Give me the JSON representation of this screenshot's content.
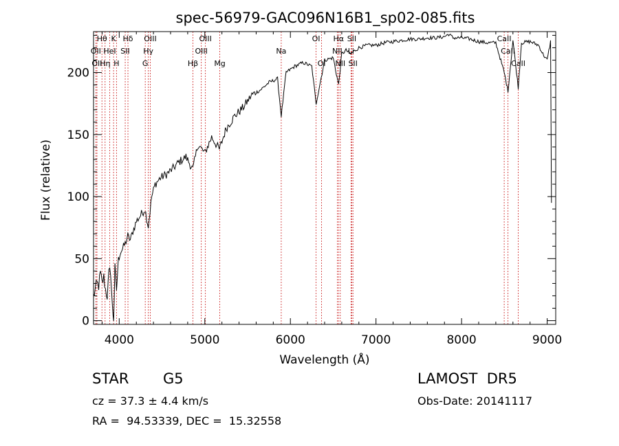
{
  "chart_data": {
    "type": "line",
    "title": "spec-56979-GAC096N16B1_sp02-085.fits",
    "xlabel": "Wavelength (Å)",
    "ylabel": "Flux (relative)",
    "xlim": [
      3700,
      9100
    ],
    "ylim": [
      -3,
      233
    ],
    "xticks": [
      4000,
      5000,
      6000,
      7000,
      8000,
      9000
    ],
    "yticks": [
      0,
      50,
      100,
      150,
      200
    ],
    "grid": false,
    "series": [
      {
        "x": [
          3700,
          3720,
          3740,
          3760,
          3780,
          3800,
          3820,
          3840,
          3860,
          3880,
          3900,
          3920,
          3935,
          3950,
          3968,
          3990,
          4010,
          4040,
          4070,
          4100,
          4130,
          4160,
          4200,
          4250,
          4300,
          4340,
          4380,
          4420,
          4480,
          4550,
          4620,
          4700,
          4780,
          4861,
          4920,
          5000,
          5080,
          5170,
          5250,
          5350,
          5450,
          5550,
          5650,
          5750,
          5850,
          5893,
          5950,
          6050,
          6150,
          6250,
          6300,
          6400,
          6500,
          6563,
          6600,
          6650,
          6700,
          6800,
          6900,
          7000,
          7100,
          7200,
          7300,
          7400,
          7500,
          7600,
          7700,
          7800,
          7850,
          7900,
          8000,
          8100,
          8200,
          8300,
          8400,
          8498,
          8542,
          8600,
          8662,
          8700,
          8800,
          8900,
          8950,
          9000,
          9040,
          9050
        ],
        "y": [
          20,
          25,
          30,
          28,
          38,
          30,
          35,
          25,
          20,
          38,
          40,
          10,
          2,
          42,
          25,
          48,
          55,
          58,
          62,
          68,
          65,
          72,
          80,
          85,
          90,
          76,
          100,
          110,
          115,
          118,
          122,
          128,
          132,
          122,
          142,
          135,
          148,
          138,
          155,
          165,
          172,
          182,
          186,
          192,
          195,
          165,
          200,
          205,
          208,
          205,
          175,
          210,
          212,
          190,
          215,
          218,
          215,
          220,
          222,
          222,
          224,
          225,
          226,
          227,
          227,
          228,
          228,
          229,
          231,
          228,
          228,
          227,
          225,
          224,
          224,
          200,
          185,
          226,
          188,
          224,
          225,
          222,
          215,
          210,
          225,
          95
        ]
      }
    ],
    "lines": [
      {
        "label": "Hθ",
        "x": 3798,
        "row": 0
      },
      {
        "label": "OII",
        "x": 3727,
        "row": 1
      },
      {
        "label": "OII",
        "x": 3740,
        "row": 2
      },
      {
        "label": "Hη",
        "x": 3835,
        "row": 2
      },
      {
        "label": "HeI",
        "x": 3889,
        "row": 1
      },
      {
        "label": "K",
        "x": 3934,
        "row": 0
      },
      {
        "label": "H",
        "x": 3968,
        "row": 2
      },
      {
        "label": "SII",
        "x": 4070,
        "row": 1
      },
      {
        "label": "Hδ",
        "x": 4102,
        "row": 0
      },
      {
        "label": "OIII",
        "x": 4363,
        "row": 0
      },
      {
        "label": "Hγ",
        "x": 4340,
        "row": 1
      },
      {
        "label": "G",
        "x": 4304,
        "row": 2
      },
      {
        "label": "Hβ",
        "x": 4861,
        "row": 2
      },
      {
        "label": "OIII",
        "x": 5007,
        "row": 0
      },
      {
        "label": "OIII",
        "x": 4959,
        "row": 1
      },
      {
        "label": "Mg",
        "x": 5175,
        "row": 2
      },
      {
        "label": "Na",
        "x": 5893,
        "row": 1
      },
      {
        "label": "OI",
        "x": 6300,
        "row": 0
      },
      {
        "label": "OI",
        "x": 6364,
        "row": 2
      },
      {
        "label": "Hα",
        "x": 6563,
        "row": 0
      },
      {
        "label": "NII",
        "x": 6548,
        "row": 1
      },
      {
        "label": "NII",
        "x": 6583,
        "row": 2
      },
      {
        "label": "SII",
        "x": 6717,
        "row": 0
      },
      {
        "label": "Li",
        "x": 6708,
        "row": 1
      },
      {
        "label": "SII",
        "x": 6731,
        "row": 2
      },
      {
        "label": "CaII",
        "x": 8498,
        "row": 0
      },
      {
        "label": "CaII",
        "x": 8542,
        "row": 1
      },
      {
        "label": "CaII",
        "x": 8662,
        "row": 2
      }
    ]
  },
  "info": {
    "object_type": "STAR",
    "subclass": "G5",
    "survey": "LAMOST  DR5",
    "cz": "cz = 37.3 ± 4.4 km/s",
    "obs_date": "Obs-Date: 20141117",
    "coords": "RA =  94.53339, DEC =  15.32558"
  }
}
